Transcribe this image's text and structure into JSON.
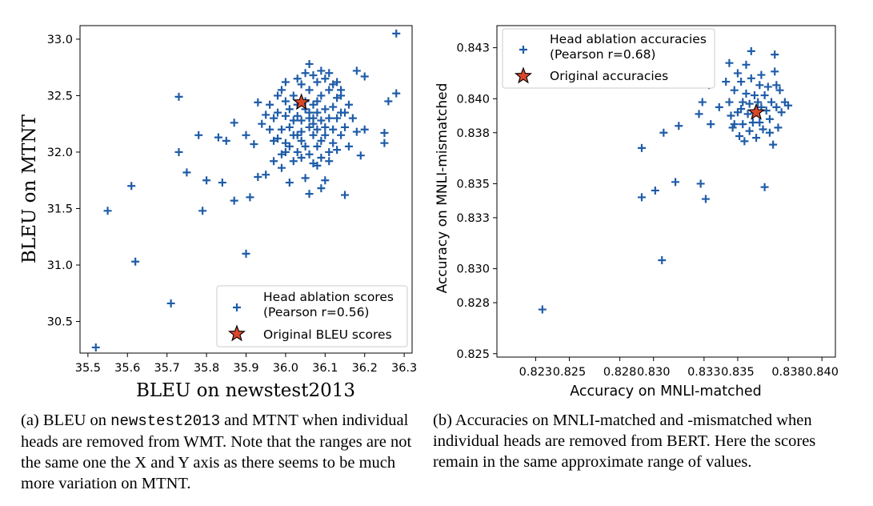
{
  "chart_data": [
    {
      "type": "scatter",
      "xlabel": "BLEU on newstest2013",
      "ylabel": "BLEU on MTNT",
      "xlim": [
        35.48,
        36.32
      ],
      "ylim": [
        30.22,
        33.12
      ],
      "xticks": [
        35.5,
        35.6,
        35.7,
        35.8,
        35.9,
        36.0,
        36.1,
        36.2,
        36.3
      ],
      "yticks": [
        30.5,
        31.0,
        31.5,
        32.0,
        32.5,
        33.0
      ],
      "xtick_labels": [
        "35.5",
        "35.6",
        "35.7",
        "35.8",
        "35.9",
        "36.0",
        "36.1",
        "36.2",
        "36.3"
      ],
      "ytick_labels": [
        "30.5",
        "31.0",
        "31.5",
        "32.0",
        "32.5",
        "33.0"
      ],
      "grid": false,
      "legend_position": "lower right",
      "legend": [
        {
          "label_line1": "Head ablation scores",
          "label_line2": "(Pearson r=0.56)",
          "marker": "plus"
        },
        {
          "label_line1": "Original BLEU scores",
          "marker": "star"
        }
      ],
      "series": [
        {
          "name": "Head ablation scores (Pearson r=0.56)",
          "marker": "plus",
          "color": "#1f5ca8",
          "points": [
            [
              36.28,
              33.05
            ],
            [
              36.28,
              32.52
            ],
            [
              36.26,
              32.45
            ],
            [
              36.25,
              32.17
            ],
            [
              36.25,
              32.08
            ],
            [
              36.2,
              32.67
            ],
            [
              36.2,
              32.2
            ],
            [
              36.19,
              31.97
            ],
            [
              36.18,
              32.72
            ],
            [
              36.15,
              31.62
            ],
            [
              36.14,
              32.5
            ],
            [
              35.52,
              30.27
            ],
            [
              35.55,
              31.48
            ],
            [
              35.61,
              31.7
            ],
            [
              35.62,
              31.03
            ],
            [
              35.71,
              30.66
            ],
            [
              35.73,
              32.49
            ],
            [
              35.73,
              32.0
            ],
            [
              35.75,
              31.82
            ],
            [
              35.78,
              32.15
            ],
            [
              35.79,
              31.48
            ],
            [
              35.8,
              31.75
            ],
            [
              35.83,
              32.13
            ],
            [
              35.85,
              32.1
            ],
            [
              35.84,
              31.73
            ],
            [
              35.87,
              31.57
            ],
            [
              35.87,
              32.26
            ],
            [
              35.9,
              31.1
            ],
            [
              35.91,
              31.6
            ],
            [
              35.9,
              32.15
            ],
            [
              35.92,
              32.07
            ],
            [
              35.93,
              32.44
            ],
            [
              35.93,
              31.78
            ],
            [
              35.94,
              32.25
            ],
            [
              35.95,
              31.8
            ],
            [
              35.96,
              32.2
            ],
            [
              35.97,
              31.92
            ],
            [
              35.98,
              32.35
            ],
            [
              35.99,
              31.86
            ],
            [
              36.0,
              32.0
            ],
            [
              35.97,
              32.1
            ],
            [
              36.01,
              31.73
            ],
            [
              36.02,
              32.5
            ],
            [
              36.03,
              32.15
            ],
            [
              36.04,
              32.6
            ],
            [
              36.05,
              31.77
            ],
            [
              36.06,
              32.78
            ],
            [
              36.06,
              31.63
            ],
            [
              36.07,
              32.3
            ],
            [
              36.08,
              31.88
            ],
            [
              36.09,
              31.68
            ],
            [
              36.1,
              31.75
            ],
            [
              36.08,
              32.05
            ],
            [
              36.06,
              32.35
            ],
            [
              36.04,
              32.1
            ],
            [
              36.03,
              32.42
            ],
            [
              36.02,
              32.28
            ],
            [
              36.01,
              32.05
            ],
            [
              36.0,
              32.62
            ],
            [
              36.0,
              32.32
            ],
            [
              35.99,
              32.2
            ],
            [
              35.98,
              32.12
            ],
            [
              35.98,
              32.5
            ],
            [
              35.99,
              32.55
            ],
            [
              36.0,
              32.45
            ],
            [
              36.01,
              32.38
            ],
            [
              36.01,
              32.22
            ],
            [
              36.02,
              32.15
            ],
            [
              36.03,
              32.0
            ],
            [
              36.03,
              32.32
            ],
            [
              36.04,
              32.28
            ],
            [
              36.04,
              32.18
            ],
            [
              36.05,
              32.45
            ],
            [
              36.05,
              32.05
            ],
            [
              36.05,
              32.38
            ],
            [
              36.06,
              32.22
            ],
            [
              36.06,
              32.55
            ],
            [
              36.07,
              32.15
            ],
            [
              36.07,
              32.42
            ],
            [
              36.08,
              32.35
            ],
            [
              36.08,
              32.62
            ],
            [
              36.08,
              32.2
            ],
            [
              36.09,
              32.28
            ],
            [
              36.09,
              32.5
            ],
            [
              36.09,
              32.1
            ],
            [
              36.1,
              32.38
            ],
            [
              36.1,
              32.65
            ],
            [
              36.1,
              32.22
            ],
            [
              36.11,
              32.3
            ],
            [
              36.11,
              32.55
            ],
            [
              36.11,
              32.0
            ],
            [
              36.12,
              32.4
            ],
            [
              36.12,
              32.2
            ],
            [
              36.12,
              32.6
            ],
            [
              36.13,
              32.3
            ],
            [
              36.13,
              32.48
            ],
            [
              36.14,
              32.15
            ],
            [
              36.15,
              32.35
            ],
            [
              36.15,
              32.22
            ],
            [
              36.16,
              32.42
            ],
            [
              36.17,
              32.3
            ],
            [
              36.18,
              32.18
            ],
            [
              36.07,
              32.68
            ],
            [
              36.05,
              32.7
            ],
            [
              36.03,
              32.65
            ],
            [
              36.09,
              32.72
            ],
            [
              36.11,
              32.7
            ],
            [
              36.13,
              32.62
            ],
            [
              36.14,
              32.55
            ],
            [
              36.0,
              32.08
            ],
            [
              35.99,
              31.98
            ],
            [
              36.02,
              31.92
            ],
            [
              36.04,
              31.95
            ],
            [
              36.06,
              31.98
            ],
            [
              36.07,
              31.9
            ],
            [
              36.09,
              31.95
            ],
            [
              36.11,
              31.92
            ],
            [
              36.13,
              32.02
            ],
            [
              36.16,
              32.05
            ],
            [
              35.97,
              32.3
            ],
            [
              35.96,
              32.42
            ],
            [
              35.95,
              32.33
            ],
            [
              36.06,
              32.3
            ],
            [
              36.07,
              32.25
            ],
            [
              36.08,
              32.45
            ],
            [
              36.1,
              32.15
            ],
            [
              36.12,
              32.08
            ],
            [
              36.14,
              32.35
            ]
          ]
        },
        {
          "name": "Original BLEU scores",
          "marker": "star",
          "color": "#d9472b",
          "points": [
            [
              36.04,
              32.44
            ]
          ]
        }
      ]
    },
    {
      "type": "scatter",
      "xlabel": "Accuracy on MNLI-matched",
      "ylabel": "Accuracy on MNLI-mismatched",
      "xlim": [
        0.8207,
        0.8408
      ],
      "ylim": [
        0.8248,
        0.8443
      ],
      "xticks": [
        0.823,
        0.825,
        0.828,
        0.83,
        0.833,
        0.835,
        0.838,
        0.84
      ],
      "yticks": [
        0.825,
        0.828,
        0.83,
        0.833,
        0.835,
        0.838,
        0.84,
        0.843
      ],
      "xtick_labels": [
        "0.823",
        "0.825",
        "0.828",
        "0.830",
        "0.833",
        "0.835",
        "0.838",
        "0.840"
      ],
      "ytick_labels": [
        "0.825",
        "0.828",
        "0.830",
        "0.833",
        "0.835",
        "0.838",
        "0.840",
        "0.843"
      ],
      "grid": false,
      "legend_position": "upper left",
      "legend": [
        {
          "label_line1": "Head ablation accuracies",
          "label_line2": "(Pearson r=0.68)",
          "marker": "plus"
        },
        {
          "label_line1": "Original accuracies",
          "marker": "star"
        }
      ],
      "series": [
        {
          "name": "Head ablation accuracies (Pearson r=0.68)",
          "marker": "plus",
          "color": "#1f5ca8",
          "points": [
            [
              0.8234,
              0.8276
            ],
            [
              0.8293,
              0.8342
            ],
            [
              0.8293,
              0.8371
            ],
            [
              0.8301,
              0.8346
            ],
            [
              0.8305,
              0.8305
            ],
            [
              0.8306,
              0.838
            ],
            [
              0.8313,
              0.8351
            ],
            [
              0.8315,
              0.8384
            ],
            [
              0.8328,
              0.835
            ],
            [
              0.8331,
              0.8341
            ],
            [
              0.8329,
              0.8398
            ],
            [
              0.8327,
              0.8391
            ],
            [
              0.8333,
              0.8408
            ],
            [
              0.8334,
              0.8385
            ],
            [
              0.8339,
              0.8395
            ],
            [
              0.8343,
              0.841
            ],
            [
              0.8345,
              0.8398
            ],
            [
              0.8346,
              0.839
            ],
            [
              0.8348,
              0.8385
            ],
            [
              0.8345,
              0.8421
            ],
            [
              0.8348,
              0.8405
            ],
            [
              0.835,
              0.8415
            ],
            [
              0.835,
              0.8392
            ],
            [
              0.8351,
              0.8378
            ],
            [
              0.8352,
              0.841
            ],
            [
              0.8353,
              0.8398
            ],
            [
              0.8353,
              0.8385
            ],
            [
              0.8354,
              0.8375
            ],
            [
              0.8355,
              0.842
            ],
            [
              0.8355,
              0.8403
            ],
            [
              0.8356,
              0.8391
            ],
            [
              0.8357,
              0.8381
            ],
            [
              0.8357,
              0.8397
            ],
            [
              0.8358,
              0.8412
            ],
            [
              0.8359,
              0.8386
            ],
            [
              0.836,
              0.8402
            ],
            [
              0.836,
              0.8392
            ],
            [
              0.8361,
              0.8377
            ],
            [
              0.8362,
              0.8398
            ],
            [
              0.8363,
              0.8408
            ],
            [
              0.8363,
              0.8386
            ],
            [
              0.8364,
              0.8395
            ],
            [
              0.8365,
              0.8382
            ],
            [
              0.8366,
              0.8402
            ],
            [
              0.8366,
              0.8348
            ],
            [
              0.8367,
              0.8393
            ],
            [
              0.8368,
              0.8407
            ],
            [
              0.8369,
              0.8388
            ],
            [
              0.837,
              0.8398
            ],
            [
              0.8371,
              0.8373
            ],
            [
              0.8372,
              0.8416
            ],
            [
              0.8373,
              0.8395
            ],
            [
              0.8374,
              0.8383
            ],
            [
              0.8375,
              0.8405
            ],
            [
              0.8376,
              0.8392
            ],
            [
              0.8378,
              0.8398
            ],
            [
              0.838,
              0.8396
            ],
            [
              0.8372,
              0.8426
            ],
            [
              0.8358,
              0.8428
            ],
            [
              0.8364,
              0.8414
            ],
            [
              0.8373,
              0.8408
            ],
            [
              0.8369,
              0.838
            ],
            [
              0.8352,
              0.8394
            ],
            [
              0.8347,
              0.8383
            ]
          ]
        },
        {
          "name": "Original accuracies",
          "marker": "star",
          "color": "#d9472b",
          "points": [
            [
              0.8361,
              0.8392
            ]
          ]
        }
      ]
    }
  ],
  "captions": {
    "a": {
      "prefix": "(a)  BLEU on ",
      "mono": "newstest2013",
      "rest": " and MTNT when individual heads are removed from WMT. Note that the ranges are not the same one the X and Y axis as there seems to be much more variation on MTNT."
    },
    "b": {
      "text": "(b)  Accuracies on MNLI-matched and -mismatched when individual heads are removed from BERT. Here the scores remain in the same approximate range of values."
    }
  }
}
